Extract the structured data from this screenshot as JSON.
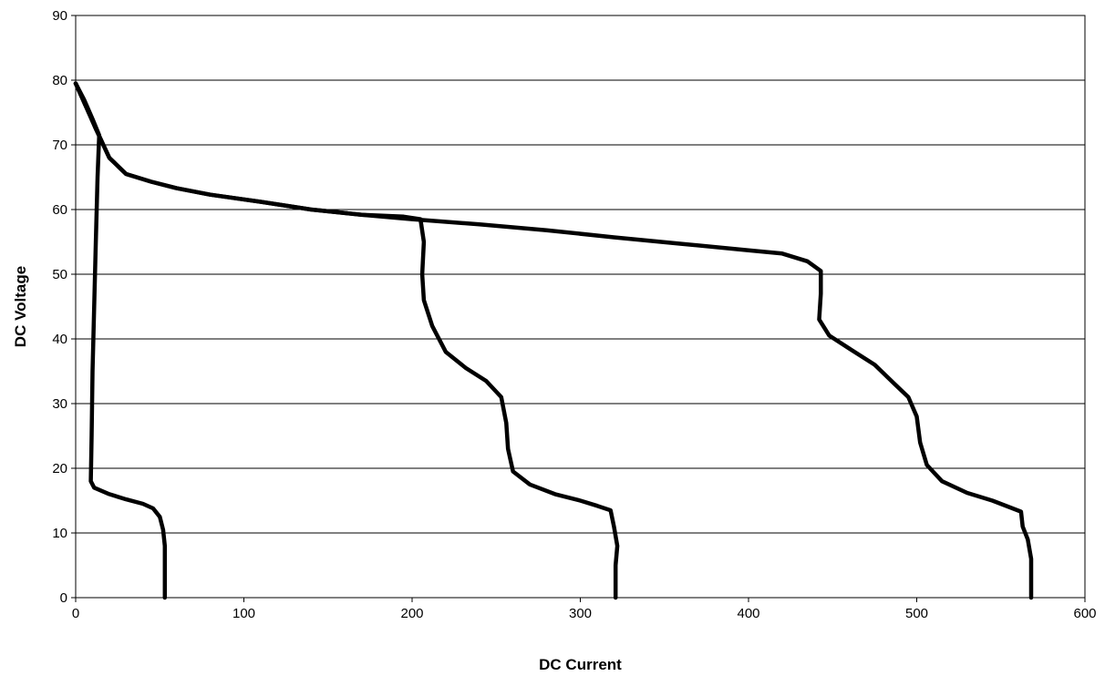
{
  "chart_data": {
    "type": "line",
    "title": "",
    "xlabel": "DC Current",
    "ylabel": "DC Voltage",
    "xlim": [
      0,
      600
    ],
    "ylim": [
      0,
      90
    ],
    "xticks": [
      0,
      100,
      200,
      300,
      400,
      500,
      600
    ],
    "yticks": [
      0,
      10,
      20,
      30,
      40,
      50,
      60,
      70,
      80,
      90
    ],
    "grid": "horizontal",
    "legend": "none",
    "line_color": "#000000",
    "series": [
      {
        "points": [
          [
            0,
            79.5
          ],
          [
            5,
            77
          ],
          [
            10,
            74
          ],
          [
            14,
            71.5
          ],
          [
            13,
            65
          ],
          [
            12,
            55
          ],
          [
            11,
            45
          ],
          [
            10,
            35
          ],
          [
            9.5,
            25
          ],
          [
            9,
            18
          ],
          [
            11,
            17
          ],
          [
            20,
            16
          ],
          [
            30,
            15.2
          ],
          [
            40,
            14.5
          ],
          [
            46,
            13.8
          ],
          [
            50,
            12.5
          ],
          [
            52,
            10.5
          ],
          [
            53,
            8
          ],
          [
            53,
            0
          ]
        ]
      },
      {
        "points": [
          [
            0,
            79.5
          ],
          [
            6,
            76
          ],
          [
            12,
            72.5
          ],
          [
            20,
            68
          ],
          [
            30,
            65.5
          ],
          [
            45,
            64.3
          ],
          [
            60,
            63.3
          ],
          [
            80,
            62.3
          ],
          [
            110,
            61.2
          ],
          [
            140,
            60
          ],
          [
            170,
            59.2
          ],
          [
            195,
            58.9
          ],
          [
            205,
            58.5
          ],
          [
            207,
            55
          ],
          [
            206,
            50
          ],
          [
            207,
            46
          ],
          [
            212,
            42
          ],
          [
            220,
            38
          ],
          [
            232,
            35.5
          ],
          [
            244,
            33.5
          ],
          [
            253,
            31
          ],
          [
            256,
            27
          ],
          [
            257,
            23
          ],
          [
            260,
            19.5
          ],
          [
            270,
            17.5
          ],
          [
            285,
            16
          ],
          [
            300,
            15
          ],
          [
            310,
            14.2
          ],
          [
            318,
            13.5
          ],
          [
            320,
            11
          ],
          [
            322,
            8
          ],
          [
            321,
            5
          ],
          [
            321,
            0
          ]
        ]
      },
      {
        "points": [
          [
            0,
            79.5
          ],
          [
            6,
            76
          ],
          [
            12,
            72.5
          ],
          [
            20,
            68
          ],
          [
            30,
            65.5
          ],
          [
            45,
            64.3
          ],
          [
            60,
            63.3
          ],
          [
            80,
            62.3
          ],
          [
            110,
            61.2
          ],
          [
            140,
            60
          ],
          [
            170,
            59.2
          ],
          [
            200,
            58.5
          ],
          [
            240,
            57.7
          ],
          [
            280,
            56.8
          ],
          [
            320,
            55.7
          ],
          [
            360,
            54.7
          ],
          [
            400,
            53.7
          ],
          [
            420,
            53.2
          ],
          [
            435,
            52
          ],
          [
            443,
            50.5
          ],
          [
            443,
            47
          ],
          [
            442,
            43
          ],
          [
            448,
            40.5
          ],
          [
            460,
            38.5
          ],
          [
            475,
            36
          ],
          [
            487,
            33
          ],
          [
            495,
            31
          ],
          [
            500,
            28
          ],
          [
            502,
            24
          ],
          [
            506,
            20.5
          ],
          [
            515,
            18
          ],
          [
            530,
            16.2
          ],
          [
            545,
            15
          ],
          [
            555,
            14
          ],
          [
            562,
            13.3
          ],
          [
            563,
            11
          ],
          [
            566,
            9
          ],
          [
            568,
            6
          ],
          [
            568,
            0
          ]
        ]
      }
    ]
  }
}
